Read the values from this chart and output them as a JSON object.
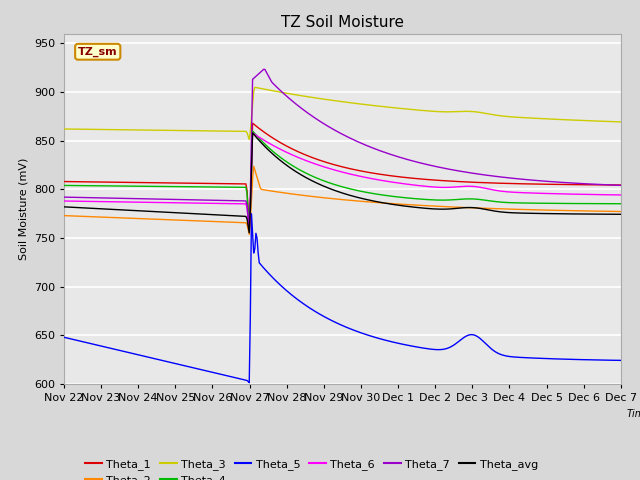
{
  "title": "TZ Soil Moisture",
  "xlabel": "Time",
  "ylabel": "Soil Moisture (mV)",
  "ylim": [
    600,
    960
  ],
  "yticks": [
    600,
    650,
    700,
    750,
    800,
    850,
    900,
    950
  ],
  "fig_bg_color": "#d8d8d8",
  "plot_bg_color": "#e8e8e8",
  "grid_color": "white",
  "annotation_text": "TZ_sm",
  "annotation_bg": "#ffffcc",
  "annotation_border": "#cc8800",
  "annotation_text_color": "#880000",
  "series_colors": {
    "Theta_1": "#dd0000",
    "Theta_2": "#ff8800",
    "Theta_3": "#cccc00",
    "Theta_4": "#00bb00",
    "Theta_5": "#0000ff",
    "Theta_6": "#ff00ff",
    "Theta_7": "#9900cc",
    "Theta_avg": "#000000"
  },
  "x_tick_labels": [
    "Nov 22",
    "Nov 23",
    "Nov 24",
    "Nov 25",
    "Nov 26",
    "Nov 27",
    "Nov 28",
    "Nov 29",
    "Nov 30",
    "Dec 1",
    "Dec 2",
    "Dec 3",
    "Dec 4",
    "Dec 5",
    "Dec 6",
    "Dec 7"
  ],
  "num_points": 500
}
